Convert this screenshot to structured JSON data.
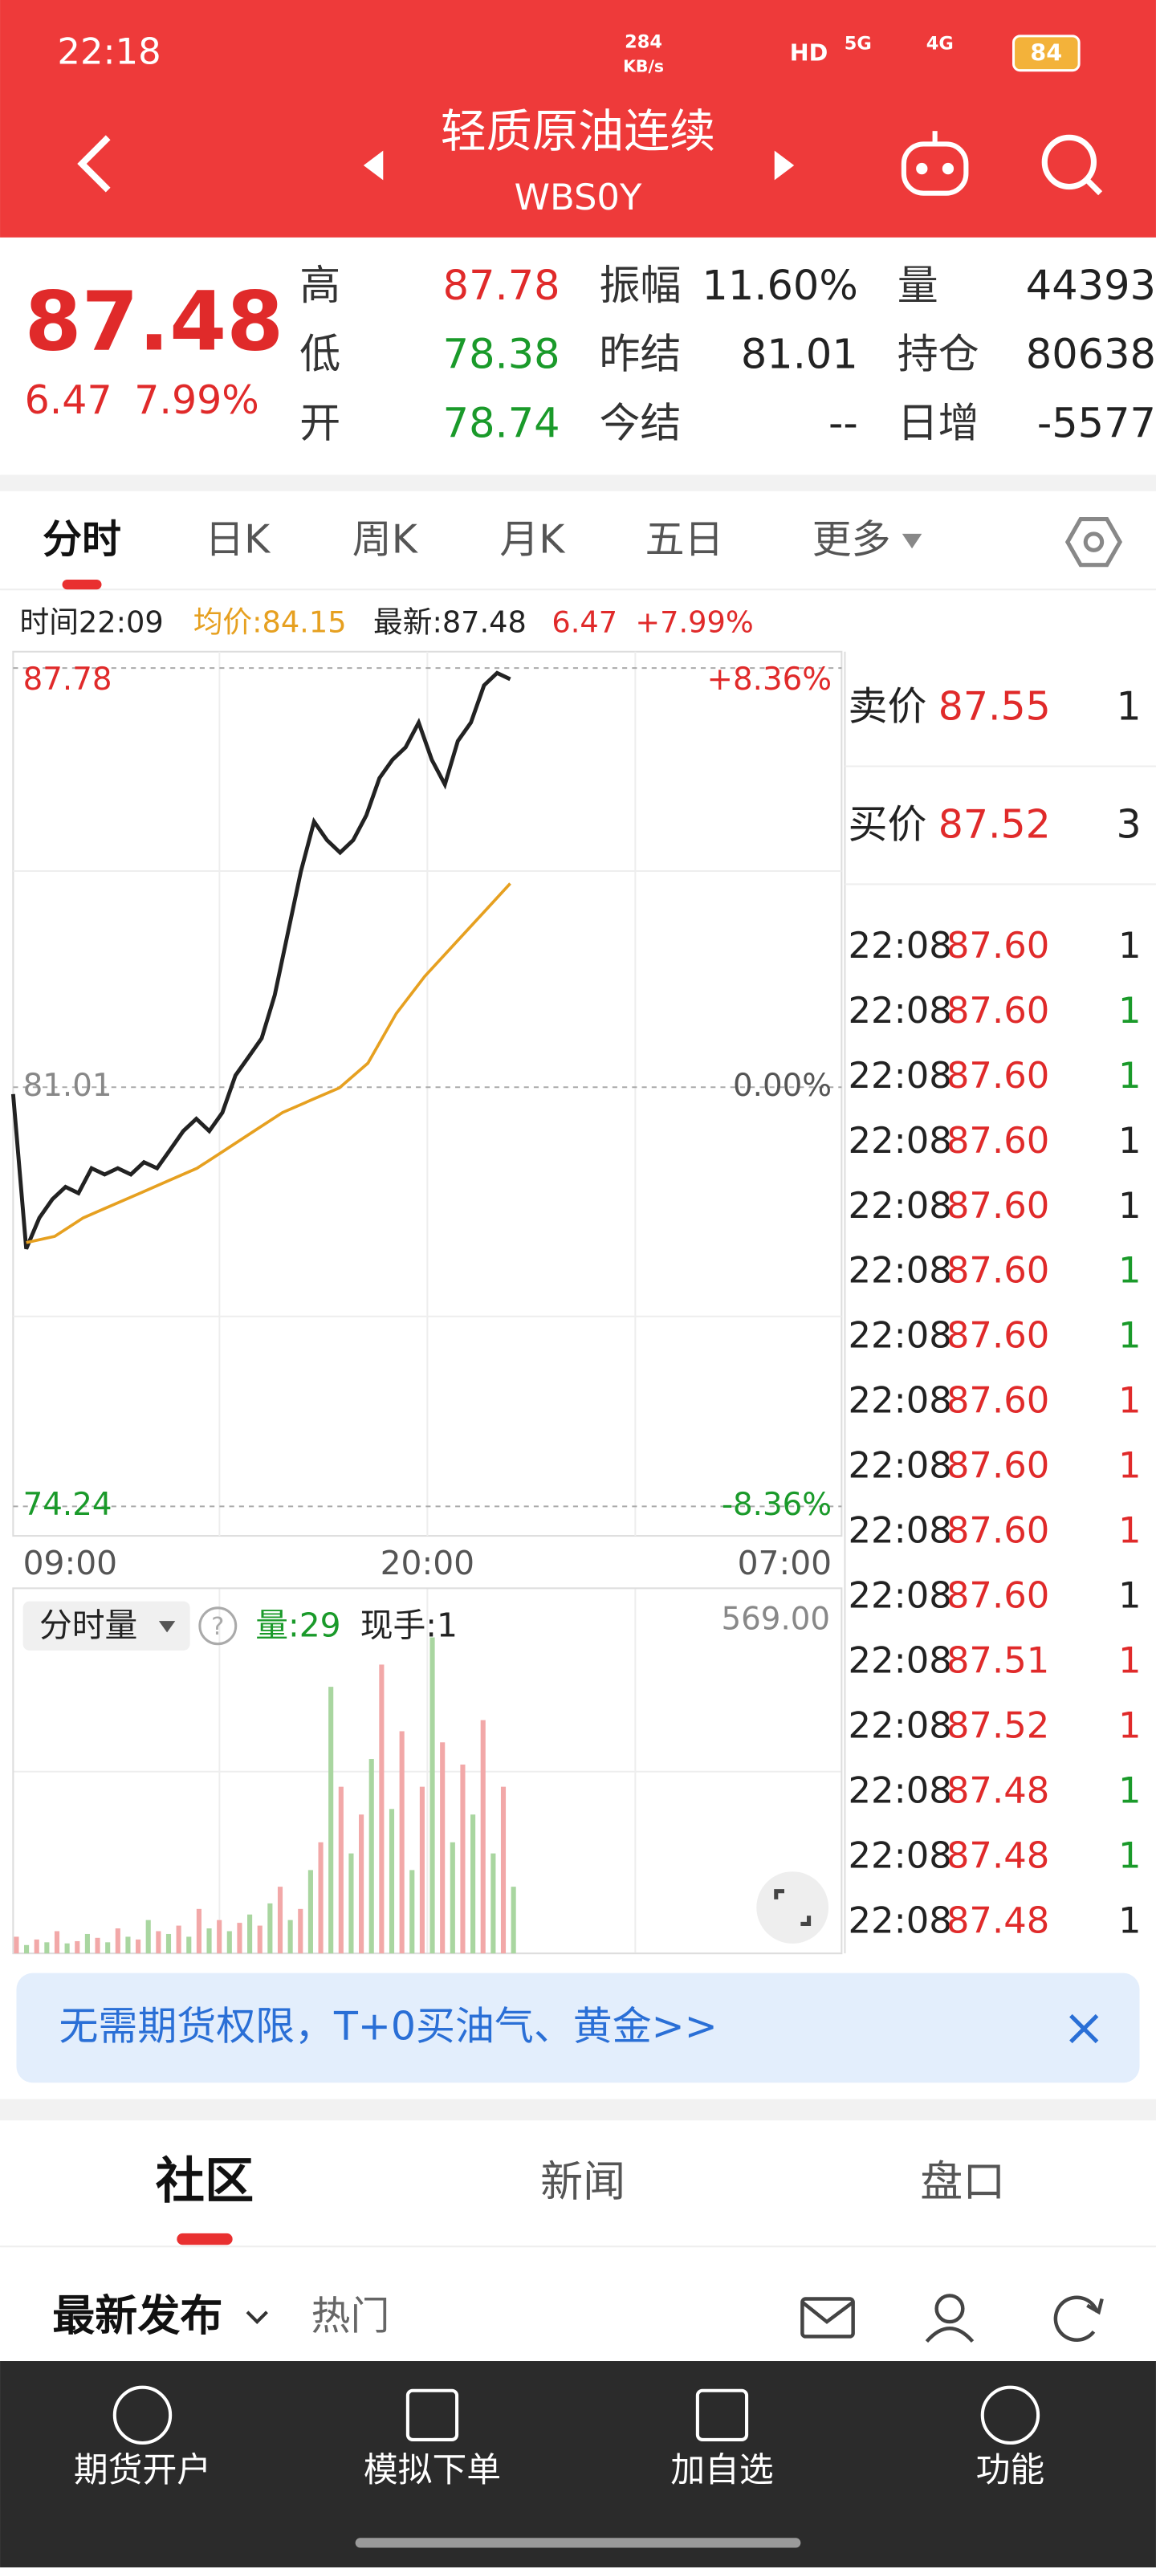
{
  "status_bar": {
    "time": "22:18",
    "speed": "284",
    "speed_unit": "KB/s",
    "hd": "HD",
    "net1": "5G",
    "net2": "4G",
    "battery": "84"
  },
  "header": {
    "title": "轻质原油连续",
    "code": "WBS0Y"
  },
  "quote": {
    "price": "87.48",
    "change": "6.47",
    "change_pct": "7.99%",
    "stats": [
      {
        "label": "高",
        "value": "87.78",
        "color": "#e02a2a"
      },
      {
        "label": "低",
        "value": "78.38",
        "color": "#1a9a2a"
      },
      {
        "label": "开",
        "value": "78.74",
        "color": "#1a9a2a"
      },
      {
        "label": "振幅",
        "value": "11.60%",
        "color": "#222222"
      },
      {
        "label": "昨结",
        "value": "81.01",
        "color": "#222222"
      },
      {
        "label": "今结",
        "value": "--",
        "color": "#222222"
      },
      {
        "label": "量",
        "value": "44393",
        "color": "#222222"
      },
      {
        "label": "持仓",
        "value": "80638",
        "color": "#222222"
      },
      {
        "label": "日增",
        "value": "-5577",
        "color": "#222222"
      }
    ]
  },
  "tabs": [
    "分时",
    "日K",
    "周K",
    "月K",
    "五日",
    "更多"
  ],
  "info_bar": {
    "time": "时间22:09",
    "avg": "均价:84.15",
    "latest": "最新:87.48",
    "change": "6.47",
    "change_pct": "+7.99%"
  },
  "chart": {
    "type": "line",
    "ylim": [
      74.24,
      87.78
    ],
    "yticks": [
      74.24,
      81.01,
      87.78
    ],
    "ytick_colors": [
      "#1a9a2a",
      "#888888",
      "#e02a2a"
    ],
    "y2lim": [
      -8.36,
      8.36
    ],
    "y2ticks": [
      {
        "value": -8.36,
        "label": "-8.36%"
      },
      {
        "value": 0,
        "label": "0.00%"
      },
      {
        "value": 8.36,
        "label": "+8.36%"
      }
    ],
    "xticks": [
      "09:00",
      "20:00",
      "07:00"
    ],
    "series": [
      {
        "color": "#222222",
        "values": [
          80.9,
          78.4,
          78.9,
          79.2,
          79.4,
          79.3,
          79.7,
          79.6,
          79.7,
          79.6,
          79.8,
          79.7,
          80.0,
          80.3,
          80.5,
          80.3,
          80.6,
          81.2,
          81.5,
          81.8,
          82.5,
          83.5,
          84.5,
          85.3,
          85.0,
          84.8,
          85.0,
          85.4,
          86.0,
          86.3,
          86.5,
          86.9,
          86.3,
          85.9,
          86.6,
          86.9,
          87.5,
          87.7,
          87.6
        ]
      },
      {
        "color": "#e6a020",
        "values": [
          78.5,
          78.6,
          78.9,
          79.1,
          79.3,
          79.5,
          79.7,
          80.0,
          80.3,
          80.6,
          80.8,
          81.0,
          81.4,
          82.2,
          82.8,
          83.3,
          83.8,
          84.3
        ]
      }
    ]
  },
  "volume": {
    "label": "分时量",
    "vol": "量:29",
    "hand": "现手:1",
    "ylim": [
      0,
      569
    ],
    "yticks": [
      {
        "value": 569,
        "label": "569.00"
      }
    ],
    "colors": [
      "#f2a8a8",
      "#a9d6a0"
    ],
    "values": [
      30,
      15,
      25,
      20,
      40,
      18,
      22,
      35,
      28,
      20,
      45,
      30,
      25,
      60,
      40,
      35,
      50,
      30,
      80,
      45,
      60,
      40,
      55,
      70,
      50,
      90,
      120,
      60,
      80,
      150,
      200,
      480,
      300,
      180,
      250,
      350,
      520,
      260,
      400,
      150,
      300,
      569,
      380,
      200,
      340,
      250,
      420,
      180,
      300,
      120
    ]
  },
  "order_book": [
    {
      "label": "卖价",
      "price": "87.55",
      "qty": "1"
    },
    {
      "label": "买价",
      "price": "87.52",
      "qty": "3"
    }
  ],
  "trades": [
    {
      "time": "22:08",
      "price": "87.60",
      "qty": "1",
      "color": "#222222"
    },
    {
      "time": "22:08",
      "price": "87.60",
      "qty": "1",
      "color": "#1a9a2a"
    },
    {
      "time": "22:08",
      "price": "87.60",
      "qty": "1",
      "color": "#1a9a2a"
    },
    {
      "time": "22:08",
      "price": "87.60",
      "qty": "1",
      "color": "#222222"
    },
    {
      "time": "22:08",
      "price": "87.60",
      "qty": "1",
      "color": "#222222"
    },
    {
      "time": "22:08",
      "price": "87.60",
      "qty": "1",
      "color": "#1a9a2a"
    },
    {
      "time": "22:08",
      "price": "87.60",
      "qty": "1",
      "color": "#1a9a2a"
    },
    {
      "time": "22:08",
      "price": "87.60",
      "qty": "1",
      "color": "#e02a2a"
    },
    {
      "time": "22:08",
      "price": "87.60",
      "qty": "1",
      "color": "#e02a2a"
    },
    {
      "time": "22:08",
      "price": "87.60",
      "qty": "1",
      "color": "#e02a2a"
    },
    {
      "time": "22:08",
      "price": "87.60",
      "qty": "1",
      "color": "#222222"
    },
    {
      "time": "22:08",
      "price": "87.51",
      "qty": "1",
      "color": "#e02a2a"
    },
    {
      "time": "22:08",
      "price": "87.52",
      "qty": "1",
      "color": "#e02a2a"
    },
    {
      "time": "22:08",
      "price": "87.48",
      "qty": "1",
      "color": "#1a9a2a"
    },
    {
      "time": "22:08",
      "price": "87.48",
      "qty": "1",
      "color": "#1a9a2a"
    },
    {
      "time": "22:08",
      "price": "87.48",
      "qty": "1",
      "color": "#222222"
    }
  ],
  "banner": "无需期货权限，T+0买油气、黄金>>",
  "community_tabs": [
    "社区",
    "新闻",
    "盘口"
  ],
  "sort": [
    "最新发布",
    "热门"
  ],
  "nav": [
    "期货开户",
    "模拟下单",
    "加自选",
    "功能"
  ]
}
